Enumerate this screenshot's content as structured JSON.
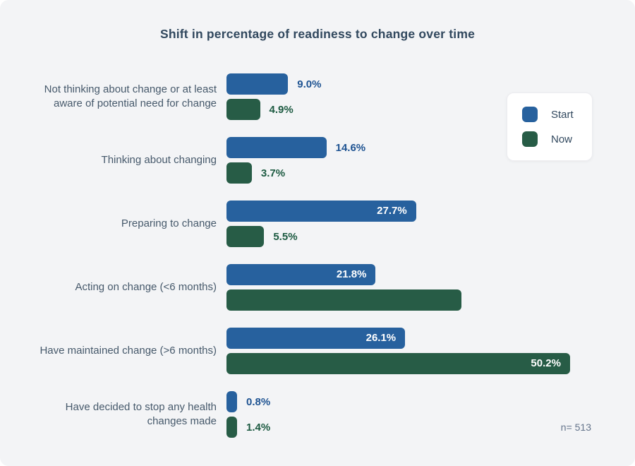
{
  "title": "Shift in percentage of readiness to change over time",
  "note": "n= 513",
  "colors": {
    "card_background": "#f3f4f6",
    "title_text": "#31485e",
    "category_text": "#46596b",
    "start_bar": "#27619e",
    "now_bar": "#275c46",
    "start_value_text": "#1e5392",
    "now_value_text": "#1c5a41",
    "inside_value_text": "#ffffff",
    "note_text": "#64748b"
  },
  "legend": {
    "position": "top-right",
    "items": [
      {
        "label": "Start",
        "color": "#27619e"
      },
      {
        "label": "Now",
        "color": "#275c46"
      }
    ]
  },
  "chart_data": {
    "type": "bar",
    "orientation": "horizontal",
    "unit": "percent",
    "title": "Shift in percentage of readiness to change over time",
    "xlabel": "",
    "ylabel": "",
    "xlim": [
      0,
      55
    ],
    "grid": false,
    "axes_hidden": true,
    "legend_position": "top-right",
    "sample_size_note": "n= 513",
    "categories": [
      "Not thinking about change or at least aware of potential need for change",
      "Thinking about changing",
      "Preparing to change",
      "Acting on change (<6 months)",
      "Have maintained change (>6 months)",
      "Have decided to stop any health changes made"
    ],
    "series": [
      {
        "name": "Start",
        "color": "#27619e",
        "label_color": "#1e5392",
        "values": [
          9.0,
          14.6,
          27.7,
          21.8,
          26.1,
          0.8
        ],
        "labels": [
          "9.0%",
          "14.6%",
          "27.7%",
          "21.8%",
          "26.1%",
          "0.8%"
        ],
        "label_position": [
          "outside",
          "outside",
          "inside",
          "inside",
          "inside",
          "outside"
        ]
      },
      {
        "name": "Now",
        "color": "#275c46",
        "label_color": "#1c5a41",
        "values": [
          4.9,
          3.7,
          5.5,
          34.3,
          50.2,
          1.4
        ],
        "labels": [
          "4.9%",
          "3.7%",
          "5.5%",
          "",
          "50.2%",
          "1.4%"
        ],
        "label_position": [
          "outside",
          "outside",
          "outside",
          "none",
          "inside",
          "outside"
        ]
      }
    ]
  }
}
